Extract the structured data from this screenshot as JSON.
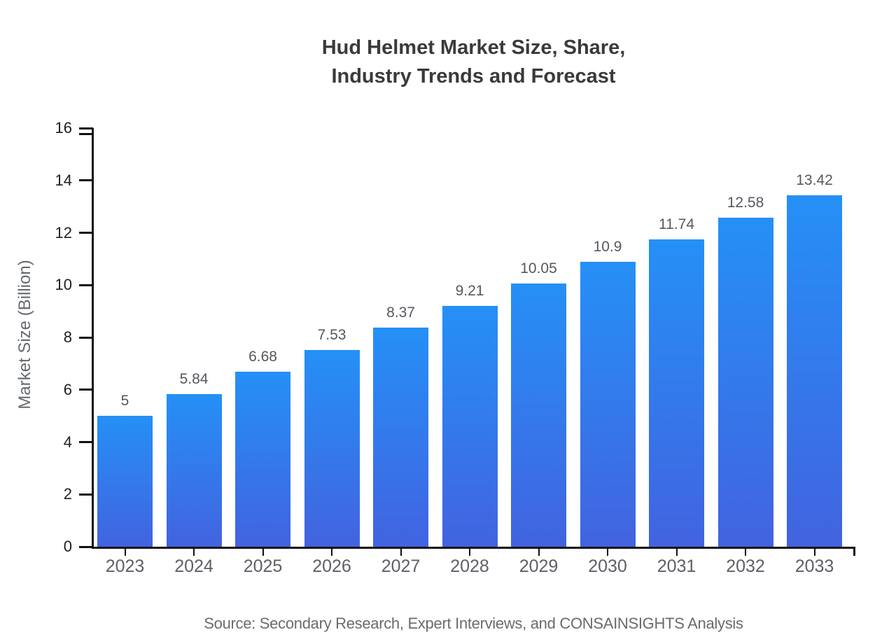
{
  "title": {
    "line1": "Hud Helmet Market Size, Share,",
    "line2": "Industry Trends and Forecast"
  },
  "y_axis": {
    "label": "Market Size (Billion)",
    "ticks": [
      0,
      2,
      4,
      6,
      8,
      10,
      12,
      14,
      16
    ],
    "max": 16
  },
  "source": "Source: Secondary Research, Expert Interviews, and CONSAINSIGHTS Analysis",
  "colors": {
    "bar_gradient_top": "#2590f6",
    "bar_gradient_bottom": "#4263e0",
    "axis": "#121212",
    "y_tick_label": "#1f1f1f",
    "x_tick_label": "#5d6066",
    "value_label": "#55585e",
    "title": "#3a3a3a",
    "y_axis_title": "#666a70",
    "source_text": "#6b6b6b"
  },
  "chart_data": {
    "type": "bar",
    "title": "Hud Helmet Market Size, Share, Industry Trends and Forecast",
    "categories": [
      "2023",
      "2024",
      "2025",
      "2026",
      "2027",
      "2028",
      "2029",
      "2030",
      "2031",
      "2032",
      "2033"
    ],
    "values": [
      5,
      5.84,
      6.68,
      7.53,
      8.37,
      9.21,
      10.05,
      10.9,
      11.74,
      12.58,
      13.42
    ],
    "value_labels": [
      "5",
      "5.84",
      "6.68",
      "7.53",
      "8.37",
      "9.21",
      "10.05",
      "10.9",
      "11.74",
      "12.58",
      "13.42"
    ],
    "xlabel": "",
    "ylabel": "Market Size (Billion)",
    "ylim": [
      0,
      16
    ],
    "grid": false,
    "legend": false
  }
}
